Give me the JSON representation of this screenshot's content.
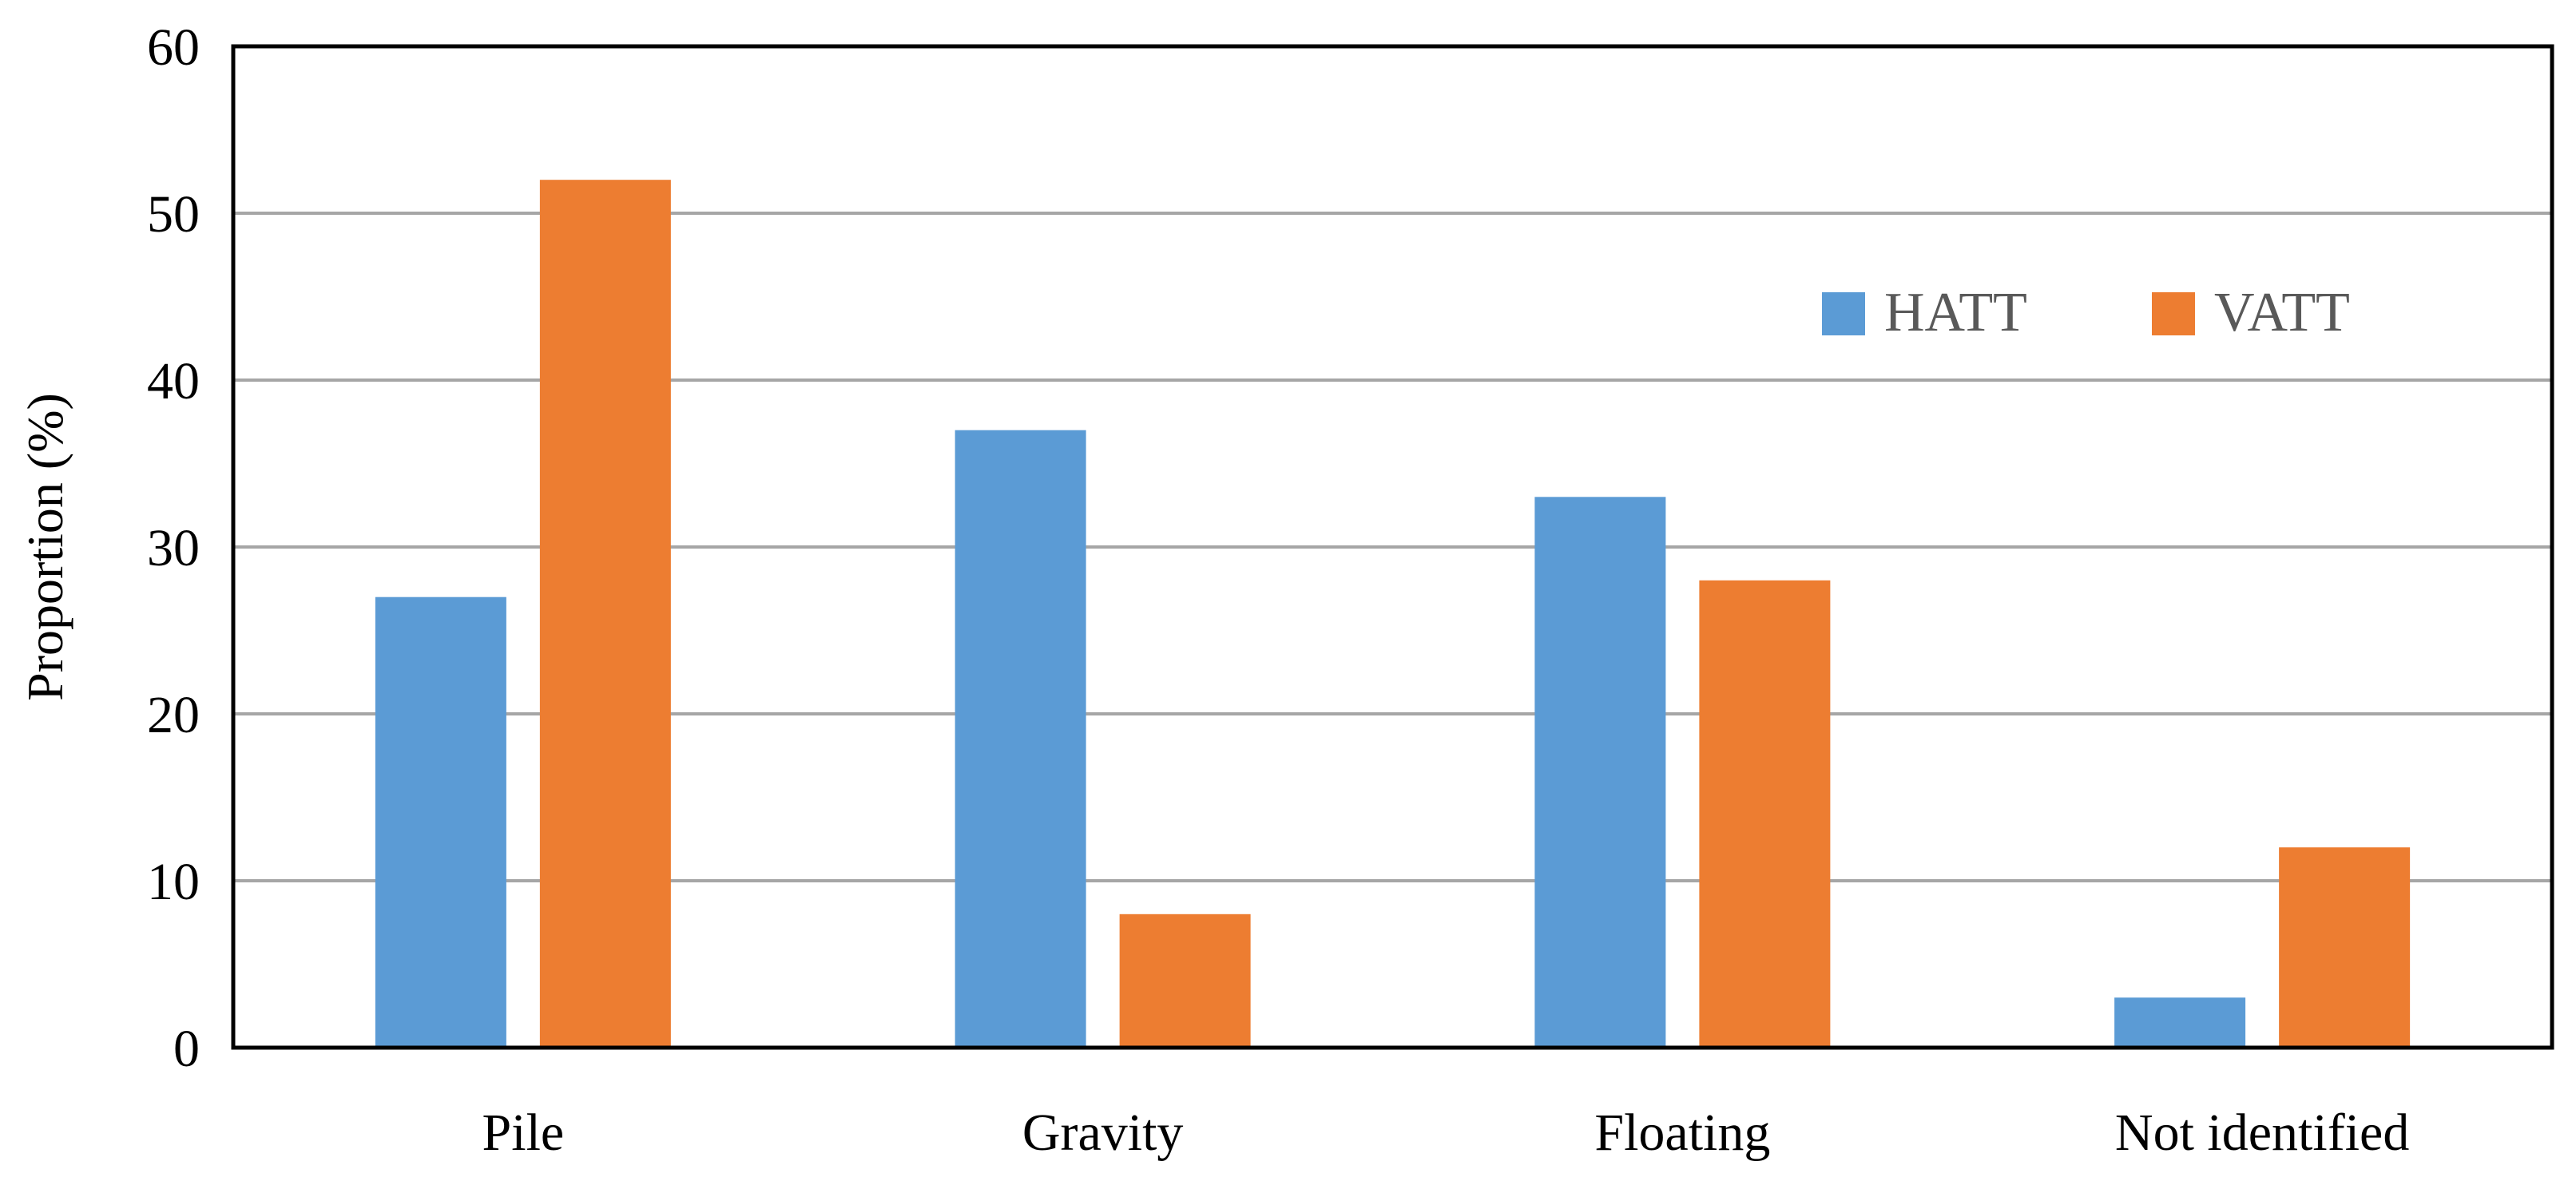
{
  "chart_data": {
    "type": "bar",
    "categories": [
      "Pile",
      "Gravity",
      "Floating",
      "Not identified"
    ],
    "series": [
      {
        "name": "HATT",
        "values": [
          27,
          37,
          33,
          3
        ],
        "color": "#5b9bd5"
      },
      {
        "name": "VATT",
        "values": [
          52,
          8,
          28,
          12
        ],
        "color": "#ed7d31"
      }
    ],
    "ylabel": "Proportion (%)",
    "xlabel": "",
    "title": "",
    "ylim": [
      0,
      60
    ],
    "yticks": [
      0,
      10,
      20,
      30,
      40,
      50,
      60
    ],
    "grid": true,
    "legend_position": "top-right"
  }
}
